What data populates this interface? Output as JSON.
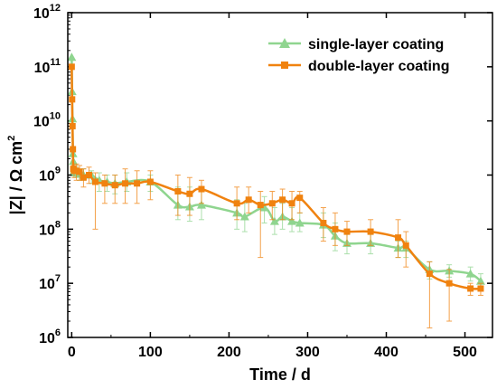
{
  "chart_data": {
    "type": "line",
    "xlabel": "Time / d",
    "ylabel": "|Z| / Ω cm",
    "ylabel_sup": "2",
    "xlim": [
      -5,
      535
    ],
    "ylim_log10": [
      6,
      12
    ],
    "yscale": "log",
    "x_ticks": [
      0,
      100,
      200,
      300,
      400,
      500
    ],
    "y_tick_base": "10",
    "y_tick_exponents": [
      "6",
      "7",
      "8",
      "9",
      "10",
      "11",
      "12"
    ],
    "legend_position": "top-right",
    "series": [
      {
        "name": "single-layer coating",
        "color": "#8fd58f",
        "marker": "triangle",
        "points": [
          {
            "x": 0,
            "y": 150000000000.0,
            "ylo": 150000000000.0,
            "yhi": 150000000000.0
          },
          {
            "x": 0.5,
            "y": 35000000000.0,
            "ylo": 35000000000.0,
            "yhi": 35000000000.0
          },
          {
            "x": 1,
            "y": 11000000000.0,
            "ylo": 11000000000.0,
            "yhi": 11000000000.0
          },
          {
            "x": 1.5,
            "y": 2500000000.0,
            "ylo": 2500000000.0,
            "yhi": 2500000000.0
          },
          {
            "x": 2,
            "y": 1800000000.0,
            "ylo": 1800000000.0,
            "yhi": 1800000000.0
          },
          {
            "x": 3,
            "y": 1200000000.0,
            "ylo": 1200000000.0,
            "yhi": 1200000000.0
          },
          {
            "x": 5,
            "y": 1100000000.0,
            "ylo": 900000000.0,
            "yhi": 1400000000.0
          },
          {
            "x": 10,
            "y": 1050000000.0,
            "ylo": 800000000.0,
            "yhi": 1300000000.0
          },
          {
            "x": 15,
            "y": 1000000000.0,
            "ylo": 800000000.0,
            "yhi": 1300000000.0
          },
          {
            "x": 25,
            "y": 1000000000.0,
            "ylo": 700000000.0,
            "yhi": 1200000000.0
          },
          {
            "x": 35,
            "y": 800000000.0,
            "ylo": 500000000.0,
            "yhi": 1100000000.0
          },
          {
            "x": 45,
            "y": 750000000.0,
            "ylo": 500000000.0,
            "yhi": 1000000000.0
          },
          {
            "x": 55,
            "y": 700000000.0,
            "ylo": 450000000.0,
            "yhi": 1000000000.0
          },
          {
            "x": 70,
            "y": 750000000.0,
            "ylo": 500000000.0,
            "yhi": 1100000000.0
          },
          {
            "x": 100,
            "y": 750000000.0,
            "ylo": 500000000.0,
            "yhi": 1000000000.0
          },
          {
            "x": 135,
            "y": 280000000.0,
            "ylo": 150000000.0,
            "yhi": 600000000.0
          },
          {
            "x": 150,
            "y": 260000000.0,
            "ylo": 140000000.0,
            "yhi": 600000000.0
          },
          {
            "x": 165,
            "y": 280000000.0,
            "ylo": 150000000.0,
            "yhi": 500000000.0
          },
          {
            "x": 210,
            "y": 200000000.0,
            "ylo": 100000000.0,
            "yhi": 350000000.0
          },
          {
            "x": 220,
            "y": 170000000.0,
            "ylo": 90000000.0,
            "yhi": 300000000.0
          },
          {
            "x": 245,
            "y": 250000000.0,
            "ylo": 130000000.0,
            "yhi": 400000000.0
          },
          {
            "x": 258,
            "y": 140000000.0,
            "ylo": 80000000.0,
            "yhi": 250000000.0
          },
          {
            "x": 268,
            "y": 170000000.0,
            "ylo": 100000000.0,
            "yhi": 300000000.0
          },
          {
            "x": 280,
            "y": 140000000.0,
            "ylo": 90000000.0,
            "yhi": 250000000.0
          },
          {
            "x": 290,
            "y": 130000000.0,
            "ylo": 90000000.0,
            "yhi": 200000000.0
          },
          {
            "x": 320,
            "y": 120000000.0,
            "ylo": 70000000.0,
            "yhi": 200000000.0
          },
          {
            "x": 335,
            "y": 75000000.0,
            "ylo": 40000000.0,
            "yhi": 130000000.0
          },
          {
            "x": 350,
            "y": 55000000.0,
            "ylo": 35000000.0,
            "yhi": 80000000.0
          },
          {
            "x": 380,
            "y": 55000000.0,
            "ylo": 35000000.0,
            "yhi": 80000000.0
          },
          {
            "x": 415,
            "y": 45000000.0,
            "ylo": 30000000.0,
            "yhi": 60000000.0
          },
          {
            "x": 425,
            "y": 45000000.0,
            "ylo": 30000000.0,
            "yhi": 60000000.0
          },
          {
            "x": 455,
            "y": 18000000.0,
            "ylo": 12000000.0,
            "yhi": 25000000.0
          },
          {
            "x": 480,
            "y": 17000000.0,
            "ylo": 13000000.0,
            "yhi": 22000000.0
          },
          {
            "x": 507,
            "y": 15000000.0,
            "ylo": 11000000.0,
            "yhi": 20000000.0
          },
          {
            "x": 520,
            "y": 11000000.0,
            "ylo": 8000000.0,
            "yhi": 15000000.0
          }
        ]
      },
      {
        "name": "double-layer coating",
        "color": "#f0820f",
        "marker": "square",
        "points": [
          {
            "x": 0,
            "y": 100000000000.0,
            "ylo": 100000000000.0,
            "yhi": 100000000000.0
          },
          {
            "x": 0.5,
            "y": 25000000000.0,
            "ylo": 25000000000.0,
            "yhi": 25000000000.0
          },
          {
            "x": 1,
            "y": 8000000000.0,
            "ylo": 8000000000.0,
            "yhi": 8000000000.0
          },
          {
            "x": 1.5,
            "y": 3000000000.0,
            "ylo": 3000000000.0,
            "yhi": 3000000000.0
          },
          {
            "x": 2,
            "y": 1300000000.0,
            "ylo": 1300000000.0,
            "yhi": 1300000000.0
          },
          {
            "x": 3,
            "y": 1200000000.0,
            "ylo": 900000000.0,
            "yhi": 1500000000.0
          },
          {
            "x": 6,
            "y": 1200000000.0,
            "ylo": 800000000.0,
            "yhi": 1600000000.0
          },
          {
            "x": 10,
            "y": 1150000000.0,
            "ylo": 800000000.0,
            "yhi": 1500000000.0
          },
          {
            "x": 15,
            "y": 900000000.0,
            "ylo": 600000000.0,
            "yhi": 1300000000.0
          },
          {
            "x": 22,
            "y": 1000000000.0,
            "ylo": 700000000.0,
            "yhi": 1400000000.0
          },
          {
            "x": 30,
            "y": 750000000.0,
            "ylo": 100000000.0,
            "yhi": 1100000000.0
          },
          {
            "x": 42,
            "y": 700000000.0,
            "ylo": 300000000.0,
            "yhi": 1000000000.0
          },
          {
            "x": 55,
            "y": 650000000.0,
            "ylo": 300000000.0,
            "yhi": 1000000000.0
          },
          {
            "x": 68,
            "y": 700000000.0,
            "ylo": 300000000.0,
            "yhi": 1300000000.0
          },
          {
            "x": 83,
            "y": 700000000.0,
            "ylo": 300000000.0,
            "yhi": 1200000000.0
          },
          {
            "x": 100,
            "y": 750000000.0,
            "ylo": 350000000.0,
            "yhi": 1200000000.0
          },
          {
            "x": 135,
            "y": 500000000.0,
            "ylo": 180000000.0,
            "yhi": 1000000000.0
          },
          {
            "x": 150,
            "y": 450000000.0,
            "ylo": 180000000.0,
            "yhi": 900000000.0
          },
          {
            "x": 165,
            "y": 550000000.0,
            "ylo": 300000000.0,
            "yhi": 800000000.0
          },
          {
            "x": 210,
            "y": 300000000.0,
            "ylo": 150000000.0,
            "yhi": 600000000.0
          },
          {
            "x": 225,
            "y": 350000000.0,
            "ylo": 200000000.0,
            "yhi": 600000000.0
          },
          {
            "x": 240,
            "y": 280000000.0,
            "ylo": 30000000.0,
            "yhi": 500000000.0
          },
          {
            "x": 255,
            "y": 300000000.0,
            "ylo": 150000000.0,
            "yhi": 500000000.0
          },
          {
            "x": 268,
            "y": 350000000.0,
            "ylo": 150000000.0,
            "yhi": 550000000.0
          },
          {
            "x": 280,
            "y": 300000000.0,
            "ylo": 150000000.0,
            "yhi": 500000000.0
          },
          {
            "x": 290,
            "y": 380000000.0,
            "ylo": 200000000.0,
            "yhi": 500000000.0
          },
          {
            "x": 320,
            "y": 130000000.0,
            "ylo": 60000000.0,
            "yhi": 250000000.0
          },
          {
            "x": 335,
            "y": 100000000.0,
            "ylo": 50000000.0,
            "yhi": 200000000.0
          },
          {
            "x": 350,
            "y": 90000000.0,
            "ylo": 50000000.0,
            "yhi": 140000000.0
          },
          {
            "x": 380,
            "y": 90000000.0,
            "ylo": 50000000.0,
            "yhi": 150000000.0
          },
          {
            "x": 415,
            "y": 70000000.0,
            "ylo": 30000000.0,
            "yhi": 150000000.0
          },
          {
            "x": 425,
            "y": 50000000.0,
            "ylo": 20000000.0,
            "yhi": 90000000.0
          },
          {
            "x": 455,
            "y": 15000000.0,
            "ylo": 1500000.0,
            "yhi": 25000000.0
          },
          {
            "x": 480,
            "y": 10000000.0,
            "ylo": 2000000.0,
            "yhi": 18000000.0
          },
          {
            "x": 507,
            "y": 8000000.0,
            "ylo": 6000000.0,
            "yhi": 10000000.0
          },
          {
            "x": 520,
            "y": 8000000.0,
            "ylo": 6000000.0,
            "yhi": 10000000.0
          }
        ]
      }
    ]
  }
}
